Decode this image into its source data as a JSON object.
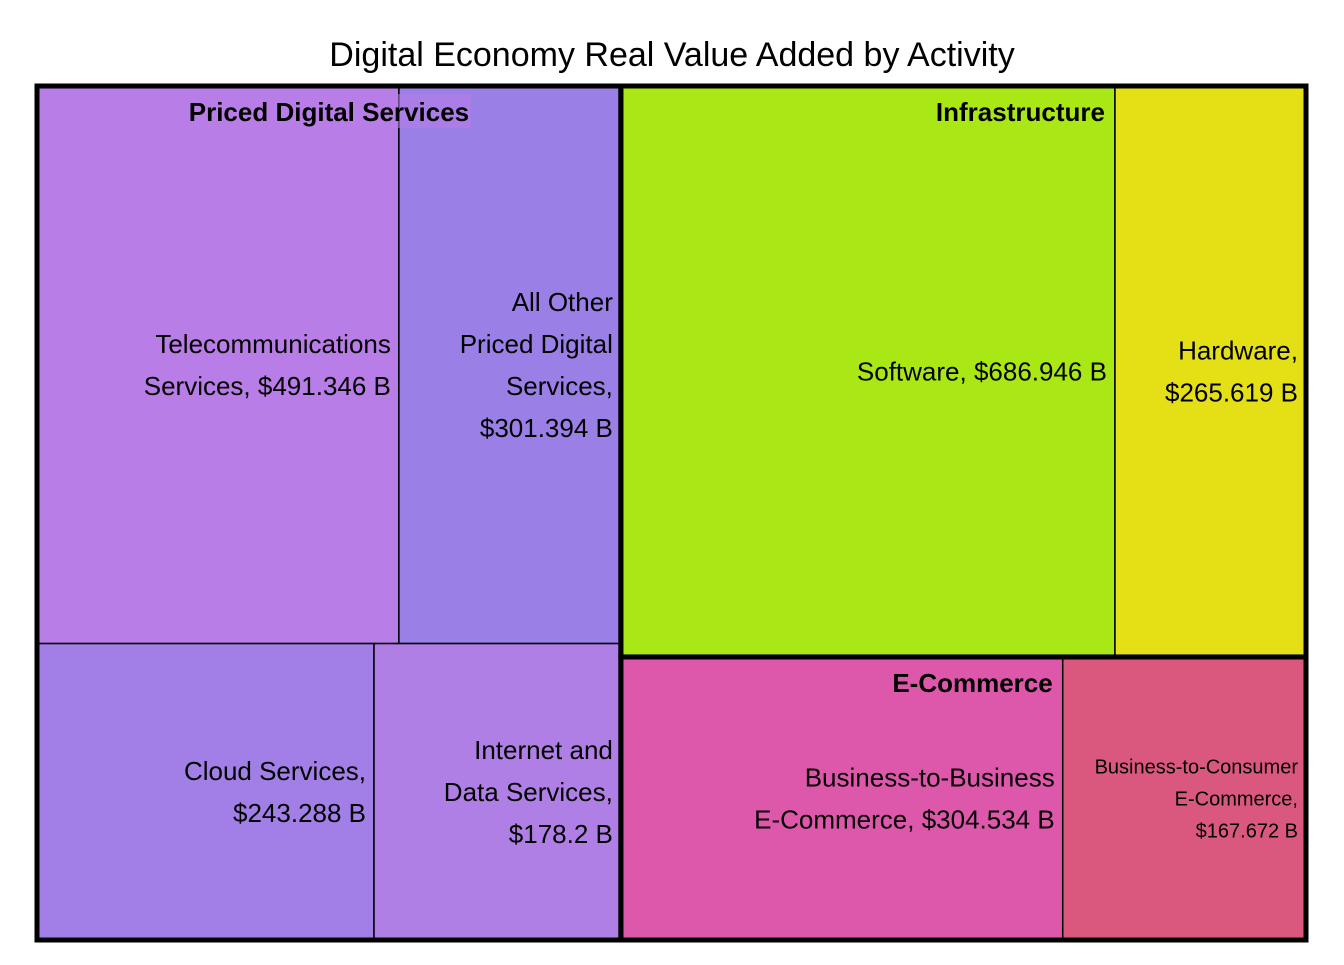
{
  "chart_data": {
    "type": "treemap",
    "title": "Digital Economy Real Value Added by Activity",
    "unit": "B",
    "groups": [
      {
        "name": "Priced Digital Services",
        "color": "#b87de6",
        "items": [
          {
            "name": "Telecommunications Services",
            "value": 491.346,
            "label": [
              "Telecommunications",
              "Services, $491.346 B"
            ],
            "color": "#b87de6"
          },
          {
            "name": "All Other Priced Digital Services",
            "value": 301.394,
            "label": [
              "All Other",
              "Priced Digital",
              "Services,",
              "$301.394 B"
            ],
            "color": "#9a7fe6"
          },
          {
            "name": "Cloud Services",
            "value": 243.288,
            "label": [
              "Cloud Services,",
              "$243.288 B"
            ],
            "color": "#a17fe6"
          },
          {
            "name": "Internet and Data Services",
            "value": 178.2,
            "label": [
              "Internet and",
              "Data Services,",
              "$178.2 B"
            ],
            "color": "#b07fe6"
          }
        ]
      },
      {
        "name": "Infrastructure",
        "color": "#aae815",
        "items": [
          {
            "name": "Software",
            "value": 686.946,
            "label": [
              "Software, $686.946 B"
            ],
            "color": "#aae815"
          },
          {
            "name": "Hardware",
            "value": 265.619,
            "label": [
              "Hardware,",
              "$265.619 B"
            ],
            "color": "#e4e015"
          }
        ]
      },
      {
        "name": "E-Commerce",
        "color": "#dd58aa",
        "items": [
          {
            "name": "Business-to-Business E-Commerce",
            "value": 304.534,
            "label": [
              "Business-to-Business",
              "E-Commerce, $304.534 B"
            ],
            "color": "#dd58aa"
          },
          {
            "name": "Business-to-Consumer E-Commerce",
            "value": 167.672,
            "label": [
              "Business-to-Consumer",
              "E-Commerce,",
              "$167.672 B"
            ],
            "color": "#da587e"
          }
        ]
      }
    ]
  }
}
